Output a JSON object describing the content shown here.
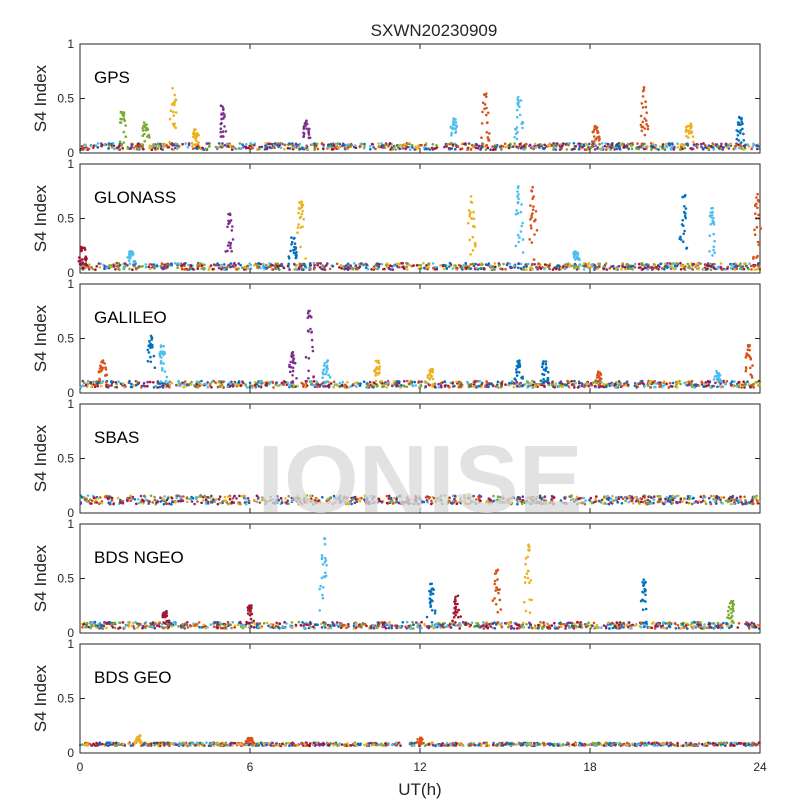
{
  "title": "SXWN20230909",
  "watermark": "IONISE",
  "colors": [
    "#0072BD",
    "#D95319",
    "#EDB120",
    "#7E2F8E",
    "#77AC30",
    "#4DBEEE",
    "#A2142F"
  ],
  "chart_data": [
    {
      "type": "scatter",
      "panel_label": "GPS",
      "ylabel": "S4 Index",
      "xlim": [
        0,
        24
      ],
      "ylim": [
        0,
        1
      ],
      "yticks": [
        "0",
        "0.5",
        "1"
      ],
      "xticks": [
        "",
        "",
        "",
        "",
        ""
      ],
      "baseline": 0.06,
      "noise": 0.03,
      "peaks": [
        {
          "x": 1.5,
          "y": 0.38,
          "color": 4
        },
        {
          "x": 2.3,
          "y": 0.28,
          "color": 4
        },
        {
          "x": 3.3,
          "y": 0.6,
          "color": 2
        },
        {
          "x": 4.1,
          "y": 0.22,
          "color": 2
        },
        {
          "x": 5.0,
          "y": 0.44,
          "color": 3
        },
        {
          "x": 8.0,
          "y": 0.3,
          "color": 3
        },
        {
          "x": 13.2,
          "y": 0.32,
          "color": 5
        },
        {
          "x": 14.3,
          "y": 0.56,
          "color": 1
        },
        {
          "x": 15.5,
          "y": 0.52,
          "color": 5
        },
        {
          "x": 18.2,
          "y": 0.25,
          "color": 1
        },
        {
          "x": 19.9,
          "y": 0.62,
          "color": 1
        },
        {
          "x": 21.5,
          "y": 0.3,
          "color": 2
        },
        {
          "x": 23.3,
          "y": 0.33,
          "color": 0
        }
      ]
    },
    {
      "type": "scatter",
      "panel_label": "GLONASS",
      "ylabel": "S4 Index",
      "xlim": [
        0,
        24
      ],
      "ylim": [
        0,
        1
      ],
      "yticks": [
        "0",
        "0.5",
        "1"
      ],
      "xticks": [
        "",
        "",
        "",
        "",
        ""
      ],
      "baseline": 0.06,
      "noise": 0.03,
      "peaks": [
        {
          "x": 0.1,
          "y": 0.25,
          "color": 6
        },
        {
          "x": 1.8,
          "y": 0.2,
          "color": 5
        },
        {
          "x": 5.3,
          "y": 0.56,
          "color": 3
        },
        {
          "x": 7.5,
          "y": 0.35,
          "color": 0
        },
        {
          "x": 7.8,
          "y": 0.68,
          "color": 2
        },
        {
          "x": 13.8,
          "y": 0.74,
          "color": 2
        },
        {
          "x": 15.5,
          "y": 0.8,
          "color": 5
        },
        {
          "x": 16.0,
          "y": 0.84,
          "color": 1
        },
        {
          "x": 17.5,
          "y": 0.2,
          "color": 5
        },
        {
          "x": 21.3,
          "y": 0.75,
          "color": 0
        },
        {
          "x": 22.3,
          "y": 0.6,
          "color": 5
        },
        {
          "x": 23.9,
          "y": 0.73,
          "color": 1
        }
      ]
    },
    {
      "type": "scatter",
      "panel_label": "GALILEO",
      "ylabel": "S4 Index",
      "xlim": [
        0,
        24
      ],
      "ylim": [
        0,
        1
      ],
      "yticks": [
        "0",
        "0.5",
        "1"
      ],
      "xticks": [
        "",
        "",
        "",
        "",
        ""
      ],
      "baseline": 0.08,
      "noise": 0.03,
      "peaks": [
        {
          "x": 0.8,
          "y": 0.3,
          "color": 1
        },
        {
          "x": 2.5,
          "y": 0.55,
          "color": 0
        },
        {
          "x": 2.9,
          "y": 0.45,
          "color": 5
        },
        {
          "x": 7.5,
          "y": 0.38,
          "color": 3
        },
        {
          "x": 8.1,
          "y": 0.76,
          "color": 3
        },
        {
          "x": 8.7,
          "y": 0.3,
          "color": 5
        },
        {
          "x": 10.5,
          "y": 0.3,
          "color": 2
        },
        {
          "x": 12.4,
          "y": 0.22,
          "color": 2
        },
        {
          "x": 15.5,
          "y": 0.3,
          "color": 0
        },
        {
          "x": 16.4,
          "y": 0.3,
          "color": 0
        },
        {
          "x": 18.3,
          "y": 0.2,
          "color": 1
        },
        {
          "x": 22.5,
          "y": 0.2,
          "color": 5
        },
        {
          "x": 23.6,
          "y": 0.44,
          "color": 1
        }
      ]
    },
    {
      "type": "scatter",
      "panel_label": "SBAS",
      "ylabel": "S4 Index",
      "xlim": [
        0,
        24
      ],
      "ylim": [
        0,
        1
      ],
      "yticks": [
        "0",
        "0.5",
        "1"
      ],
      "xticks": [
        "",
        "",
        "",
        "",
        ""
      ],
      "baseline": 0.12,
      "noise": 0.04,
      "peaks": []
    },
    {
      "type": "scatter",
      "panel_label": "BDS NGEO",
      "ylabel": "S4 Index",
      "xlim": [
        0,
        24
      ],
      "ylim": [
        0,
        1
      ],
      "yticks": [
        "0",
        "0.5",
        "1"
      ],
      "xticks": [
        "",
        "",
        "",
        "",
        ""
      ],
      "baseline": 0.07,
      "noise": 0.03,
      "peaks": [
        {
          "x": 3.0,
          "y": 0.2,
          "color": 6
        },
        {
          "x": 6.0,
          "y": 0.26,
          "color": 6
        },
        {
          "x": 8.6,
          "y": 0.88,
          "color": 5
        },
        {
          "x": 12.4,
          "y": 0.46,
          "color": 0
        },
        {
          "x": 13.3,
          "y": 0.35,
          "color": 6
        },
        {
          "x": 14.7,
          "y": 0.58,
          "color": 1
        },
        {
          "x": 15.8,
          "y": 0.82,
          "color": 2
        },
        {
          "x": 19.9,
          "y": 0.5,
          "color": 0
        },
        {
          "x": 23.0,
          "y": 0.3,
          "color": 4
        }
      ]
    },
    {
      "type": "scatter",
      "panel_label": "BDS GEO",
      "ylabel": "S4 Index",
      "xlim": [
        0,
        24
      ],
      "ylim": [
        0,
        1
      ],
      "yticks": [
        "0",
        "0.5",
        "1"
      ],
      "xticks": [
        "0",
        "6",
        "12",
        "18",
        "24"
      ],
      "xlabel": "UT(h)",
      "baseline": 0.08,
      "noise": 0.015,
      "peaks": [
        {
          "x": 2.1,
          "y": 0.16,
          "color": 2
        },
        {
          "x": 6.0,
          "y": 0.14,
          "color": 1
        },
        {
          "x": 12.0,
          "y": 0.14,
          "color": 1
        }
      ]
    }
  ]
}
